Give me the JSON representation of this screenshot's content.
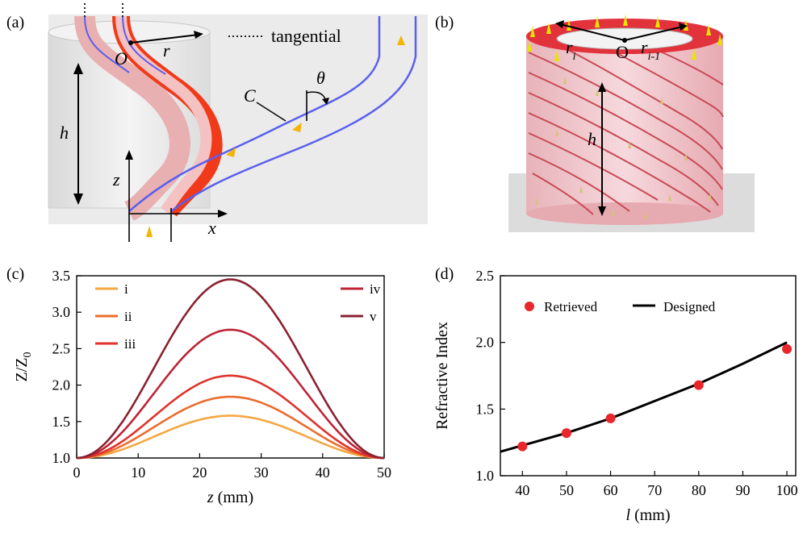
{
  "panels": {
    "a": {
      "label": "(a)",
      "legend_text": "tangential",
      "sym_O": "O",
      "sym_r": "r",
      "sym_h": "h",
      "sym_C": "C",
      "sym_theta": "θ",
      "sym_z": "z",
      "sym_x": "x"
    },
    "b": {
      "label": "(b)",
      "sym_ri": "r",
      "sym_ri_sub": "i",
      "sym_O": "O",
      "sym_ri1": "r",
      "sym_ri1_sub": "i-1",
      "sym_h": "h"
    },
    "c": {
      "label": "(c)"
    },
    "d": {
      "label": "(d)"
    }
  },
  "chart_data": [
    {
      "id": "c",
      "type": "line",
      "ylabel_main": "Z/Z",
      "ylabel_sub": "0",
      "xlabel_var": "z",
      "xlabel_unit": " (mm)",
      "xlim": [
        0,
        50
      ],
      "ylim": [
        1.0,
        3.5
      ],
      "xticks": [
        0,
        10,
        20,
        30,
        40,
        50
      ],
      "yticks": [
        1.0,
        1.5,
        2.0,
        2.5,
        3.0,
        3.5
      ],
      "series": [
        {
          "name": "i",
          "peak": 1.58,
          "color": "#f5a742"
        },
        {
          "name": "ii",
          "peak": 1.84,
          "color": "#ec6c2c"
        },
        {
          "name": "iii",
          "peak": 2.13,
          "color": "#e0332e"
        },
        {
          "name": "iv",
          "peak": 2.76,
          "color": "#bd2436"
        },
        {
          "name": "v",
          "peak": 3.45,
          "color": "#8a2230"
        }
      ]
    },
    {
      "id": "d",
      "type": "scatter",
      "ylabel": "Refractive Index",
      "xlabel_var": "l",
      "xlabel_unit": " (mm)",
      "xlim": [
        35,
        102
      ],
      "ylim": [
        1.0,
        2.5
      ],
      "xticks": [
        40,
        50,
        60,
        70,
        80,
        90,
        100
      ],
      "yticks": [
        1.0,
        1.5,
        2.0,
        2.5
      ],
      "series": [
        {
          "name": "Retrieved",
          "x": [
            40,
            50,
            60,
            80,
            100
          ],
          "y": [
            1.22,
            1.32,
            1.43,
            1.68,
            1.95
          ],
          "color": "#e8262b"
        },
        {
          "name": "Designed",
          "x": [
            35,
            50,
            60,
            70,
            80,
            90,
            100
          ],
          "y": [
            1.18,
            1.32,
            1.43,
            1.56,
            1.69,
            1.84,
            2.0
          ],
          "color": "#000000"
        }
      ]
    }
  ]
}
